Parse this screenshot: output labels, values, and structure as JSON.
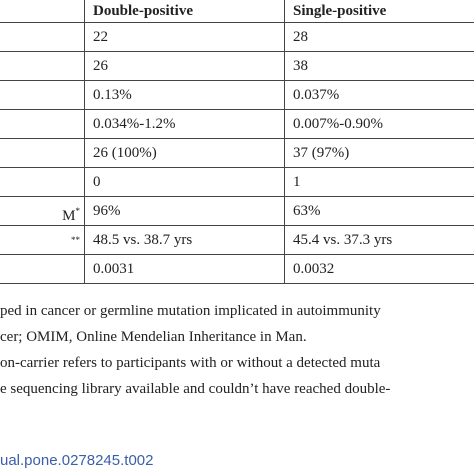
{
  "table": {
    "header": [
      "Double-positive",
      "Single-positive"
    ],
    "rows": [
      {
        "cells": [
          "22",
          "28"
        ]
      },
      {
        "cells": [
          "26",
          "38"
        ]
      },
      {
        "cells": [
          "0.13%",
          "0.037%"
        ]
      },
      {
        "cells": [
          "0.034%-1.2%",
          "0.007%-0.90%"
        ]
      },
      {
        "cells": [
          "26 (100%)",
          "37 (97%)"
        ]
      },
      {
        "cells": [
          "0",
          "1"
        ]
      },
      {
        "label": "M",
        "label_sup": "*",
        "cells": [
          "96%",
          "63%"
        ]
      },
      {
        "label_sup": "**",
        "cells": [
          "48.5 vs. 38.7 yrs",
          "45.4 vs. 37.3 yrs"
        ]
      },
      {
        "cells": [
          "0.0031",
          "0.0032"
        ]
      }
    ]
  },
  "footnotes": [
    "ped in cancer or germline mutation implicated in autoimmunity",
    "cer; OMIM, Online Mendelian Inheritance in Man.",
    "on-carrier refers to participants with or without a detected muta",
    "e sequencing library available and couldn’t have reached double-"
  ],
  "doi": "ual.pone.0278245.t002"
}
